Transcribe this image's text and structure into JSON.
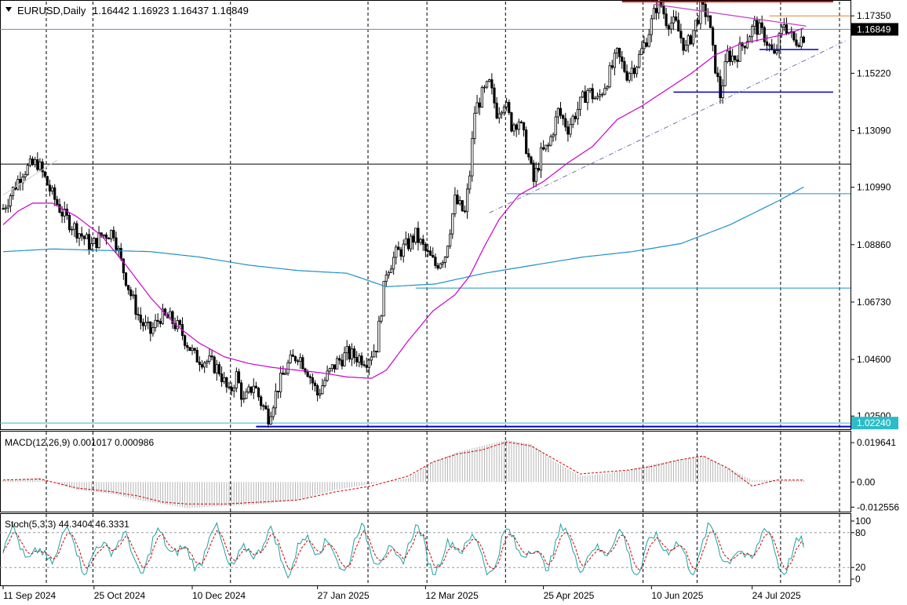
{
  "chart_data": {
    "type": "candlestick",
    "title": "EURUSD,Daily",
    "ohlc_text": "1.16442 1.16923 1.16437 1.16849",
    "price_axis": {
      "ticks": [
        "1.17350",
        "1.15220",
        "1.13090",
        "1.10990",
        "1.08860",
        "1.06730",
        "1.04600",
        "1.02500"
      ],
      "tick_values": [
        1.1735,
        1.1522,
        1.1309,
        1.1099,
        1.0886,
        1.0673,
        1.046,
        1.025
      ],
      "ylim": [
        1.0204,
        1.1788
      ]
    },
    "current_price_label": "1.16849",
    "support_price_label": "1.02240",
    "x_labels": [
      "11 Sep 2024",
      "25 Oct 2024",
      "10 Dec 2024",
      "27 Jan 2025",
      "12 Mar 2025",
      "25 Apr 2025",
      "10 Jun 2025",
      "24 Jul 2025"
    ],
    "indicators": {
      "macd": {
        "label": "MACD(12,26,9) 0.001017 0.000986",
        "ticks": [
          "0.019641",
          "0.00",
          "-0.012556"
        ],
        "tick_values": [
          0.019641,
          0,
          -0.012556
        ]
      },
      "stoch": {
        "label": "Stoch(5,3,3) 44.3404 46.3331",
        "ticks": [
          "100",
          "80",
          "20",
          "0"
        ],
        "tick_values": [
          100,
          80,
          20,
          0
        ]
      }
    },
    "price_anchors": [
      [
        0,
        1.102
      ],
      [
        8,
        1.116
      ],
      [
        14,
        1.119
      ],
      [
        20,
        1.107
      ],
      [
        25,
        1.099
      ],
      [
        30,
        1.094
      ],
      [
        36,
        1.088
      ],
      [
        40,
        1.092
      ],
      [
        45,
        1.0935
      ],
      [
        48,
        1.082
      ],
      [
        52,
        1.07
      ],
      [
        56,
        1.06
      ],
      [
        60,
        1.056
      ],
      [
        64,
        1.062
      ],
      [
        68,
        1.061
      ],
      [
        72,
        1.057
      ],
      [
        78,
        1.047
      ],
      [
        84,
        1.045
      ],
      [
        88,
        1.042
      ],
      [
        92,
        1.033
      ],
      [
        95,
        1.04
      ],
      [
        98,
        1.03
      ],
      [
        102,
        1.037
      ],
      [
        105,
        1.03
      ],
      [
        108,
        1.025
      ],
      [
        112,
        1.036
      ],
      [
        116,
        1.044
      ],
      [
        120,
        1.048
      ],
      [
        124,
        1.042
      ],
      [
        128,
        1.033
      ],
      [
        132,
        1.04
      ],
      [
        136,
        1.045
      ],
      [
        140,
        1.048
      ],
      [
        144,
        1.047
      ],
      [
        148,
        1.046
      ],
      [
        152,
        1.051
      ],
      [
        156,
        1.079
      ],
      [
        160,
        1.085
      ],
      [
        164,
        1.088
      ],
      [
        168,
        1.092
      ],
      [
        172,
        1.086
      ],
      [
        176,
        1.081
      ],
      [
        180,
        1.085
      ],
      [
        184,
        1.105
      ],
      [
        188,
        1.1
      ],
      [
        190,
        1.115
      ],
      [
        192,
        1.138
      ],
      [
        195,
        1.144
      ],
      [
        198,
        1.148
      ],
      [
        201,
        1.138
      ],
      [
        204,
        1.142
      ],
      [
        207,
        1.133
      ],
      [
        210,
        1.135
      ],
      [
        213,
        1.125
      ],
      [
        216,
        1.112
      ],
      [
        219,
        1.122
      ],
      [
        222,
        1.125
      ],
      [
        226,
        1.138
      ],
      [
        230,
        1.132
      ],
      [
        234,
        1.139
      ],
      [
        238,
        1.146
      ],
      [
        242,
        1.142
      ],
      [
        246,
        1.15
      ],
      [
        250,
        1.159
      ],
      [
        254,
        1.152
      ],
      [
        258,
        1.156
      ],
      [
        262,
        1.165
      ],
      [
        265,
        1.174
      ],
      [
        267,
        1.18
      ],
      [
        270,
        1.172
      ],
      [
        274,
        1.17
      ],
      [
        278,
        1.161
      ],
      [
        281,
        1.168
      ],
      [
        284,
        1.176
      ],
      [
        287,
        1.174
      ],
      [
        289,
        1.16
      ],
      [
        292,
        1.144
      ],
      [
        295,
        1.159
      ],
      [
        298,
        1.158
      ],
      [
        302,
        1.164
      ],
      [
        306,
        1.17
      ],
      [
        310,
        1.166
      ],
      [
        314,
        1.158
      ],
      [
        318,
        1.171
      ],
      [
        322,
        1.164
      ],
      [
        326,
        1.166
      ]
    ],
    "ma_fast_anchors": [
      [
        0,
        1.096
      ],
      [
        6,
        1.101
      ],
      [
        12,
        1.104
      ],
      [
        20,
        1.104
      ],
      [
        30,
        1.099
      ],
      [
        40,
        1.092
      ],
      [
        50,
        1.081
      ],
      [
        60,
        1.069
      ],
      [
        70,
        1.059
      ],
      [
        80,
        1.052
      ],
      [
        90,
        1.047
      ],
      [
        100,
        1.0445
      ],
      [
        110,
        1.043
      ],
      [
        120,
        1.042
      ],
      [
        130,
        1.041
      ],
      [
        140,
        1.0395
      ],
      [
        150,
        1.039
      ],
      [
        156,
        1.042
      ],
      [
        165,
        1.053
      ],
      [
        175,
        1.064
      ],
      [
        184,
        1.07
      ],
      [
        190,
        1.077
      ],
      [
        196,
        1.088
      ],
      [
        202,
        1.098
      ],
      [
        210,
        1.107
      ],
      [
        220,
        1.112
      ],
      [
        230,
        1.119
      ],
      [
        240,
        1.125
      ],
      [
        250,
        1.135
      ],
      [
        260,
        1.14
      ],
      [
        270,
        1.146
      ],
      [
        280,
        1.152
      ],
      [
        290,
        1.159
      ],
      [
        300,
        1.163
      ],
      [
        310,
        1.165
      ],
      [
        320,
        1.167
      ],
      [
        326,
        1.169
      ]
    ],
    "ma_slow_anchors": [
      [
        0,
        1.086
      ],
      [
        20,
        1.087
      ],
      [
        40,
        1.0865
      ],
      [
        60,
        1.086
      ],
      [
        80,
        1.084
      ],
      [
        100,
        1.081
      ],
      [
        120,
        1.079
      ],
      [
        140,
        1.078
      ],
      [
        156,
        1.073
      ],
      [
        176,
        1.074
      ],
      [
        196,
        1.078
      ],
      [
        216,
        1.081
      ],
      [
        236,
        1.084
      ],
      [
        256,
        1.086
      ],
      [
        276,
        1.089
      ],
      [
        296,
        1.096
      ],
      [
        316,
        1.105
      ],
      [
        326,
        1.11
      ]
    ],
    "macd_anchors": [
      [
        0,
        0.001
      ],
      [
        15,
        0.002
      ],
      [
        30,
        -0.004
      ],
      [
        45,
        -0.006
      ],
      [
        55,
        -0.009
      ],
      [
        65,
        -0.011
      ],
      [
        75,
        -0.013
      ],
      [
        90,
        -0.012
      ],
      [
        105,
        -0.011
      ],
      [
        120,
        -0.009
      ],
      [
        135,
        -0.004
      ],
      [
        150,
        -0.001
      ],
      [
        165,
        0.002
      ],
      [
        175,
        0.01
      ],
      [
        185,
        0.015
      ],
      [
        195,
        0.018
      ],
      [
        205,
        0.021
      ],
      [
        215,
        0.019
      ],
      [
        225,
        0.01
      ],
      [
        235,
        0.003
      ],
      [
        245,
        0.004
      ],
      [
        255,
        0.006
      ],
      [
        265,
        0.009
      ],
      [
        275,
        0.011
      ],
      [
        285,
        0.013
      ],
      [
        295,
        0.007
      ],
      [
        305,
        0.001
      ],
      [
        315,
        0.001
      ],
      [
        326,
        0.001
      ]
    ],
    "signal_anchors": [
      [
        0,
        0.001
      ],
      [
        15,
        0.0015
      ],
      [
        30,
        -0.003
      ],
      [
        45,
        -0.005
      ],
      [
        55,
        -0.007
      ],
      [
        65,
        -0.01
      ],
      [
        75,
        -0.011
      ],
      [
        90,
        -0.011
      ],
      [
        105,
        -0.01
      ],
      [
        120,
        -0.009
      ],
      [
        135,
        -0.005
      ],
      [
        150,
        -0.002
      ],
      [
        165,
        0.003
      ],
      [
        175,
        0.01
      ],
      [
        185,
        0.014
      ],
      [
        195,
        0.016
      ],
      [
        205,
        0.02
      ],
      [
        215,
        0.018
      ],
      [
        225,
        0.011
      ],
      [
        235,
        0.004
      ],
      [
        245,
        0.005
      ],
      [
        255,
        0.006
      ],
      [
        265,
        0.008
      ],
      [
        275,
        0.011
      ],
      [
        285,
        0.013
      ],
      [
        295,
        0.007
      ],
      [
        305,
        -0.002
      ],
      [
        315,
        0.001
      ],
      [
        326,
        0.001
      ]
    ]
  },
  "colors": {
    "ma_fast": "#cc00cc",
    "ma_slow": "#1e90c8",
    "macd_hist": "#b4b4b4",
    "macd_signal": "#cc0000",
    "stoch_main": "#20a0a0",
    "stoch_signal": "#cc0000",
    "resistance": "#dd0000",
    "support": "#0000cc",
    "label_dark": "#000000",
    "label_cyan": "#2bbcc8"
  }
}
